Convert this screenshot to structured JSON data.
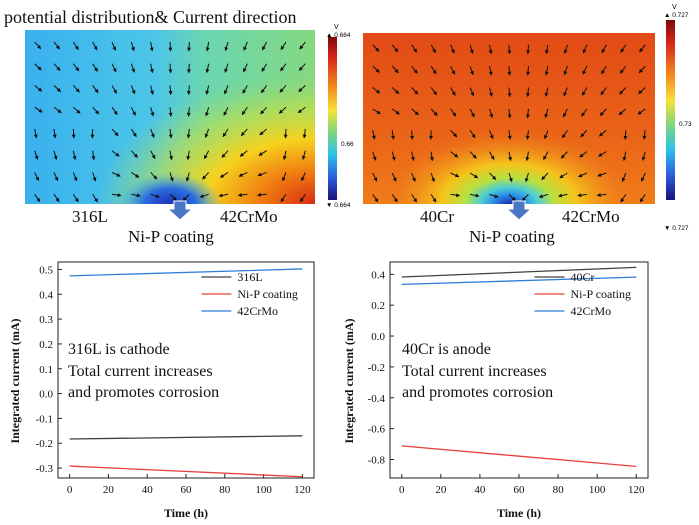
{
  "figure": {
    "title": "potential distribution& Current direction"
  },
  "maps": [
    {
      "id": "left",
      "palette": "blue-warm",
      "labels": {
        "left": "316L",
        "right": "42CrMo",
        "bottom": "Ni-P coating"
      },
      "colorbar": {
        "unit": "V",
        "max": "▲ 0.664",
        "mid": "0.66",
        "min": "▼ 0.664"
      }
    },
    {
      "id": "right",
      "palette": "red-warm",
      "labels": {
        "left": "40Cr",
        "right": "42CrMo",
        "bottom": "Ni-P coating"
      },
      "colorbar": {
        "unit": "V",
        "max": "▲ 0.727",
        "mid": "0.73",
        "min": "▼ 0.727"
      }
    }
  ],
  "chart_data": [
    {
      "type": "line",
      "xlabel": "Time (h)",
      "ylabel": "Integrated current (mA)",
      "xlim": [
        -6,
        126
      ],
      "ylim": [
        -0.34,
        0.53
      ],
      "xticks": [
        0,
        20,
        40,
        60,
        80,
        100,
        120
      ],
      "yticks": [
        -0.3,
        -0.2,
        -0.1,
        0.0,
        0.1,
        0.2,
        0.3,
        0.4,
        0.5
      ],
      "ytick_labels": [
        "-0.3",
        "-0.2",
        "-0.1",
        "0.0",
        "0.1",
        "0.2",
        "0.3",
        "0.4",
        "0.5"
      ],
      "legend_position": "upper-right",
      "annotation": [
        "316L is cathode",
        "Total current increases",
        "and promotes corrosion"
      ],
      "series": [
        {
          "name": "316L",
          "color": "#404040",
          "x": [
            0,
            120
          ],
          "y": [
            -0.183,
            -0.17
          ]
        },
        {
          "name": "Ni-P coating",
          "color": "#e8413c",
          "x": [
            0,
            120
          ],
          "y": [
            -0.292,
            -0.335
          ]
        },
        {
          "name": "42CrMo",
          "color": "#2f7fd8",
          "x": [
            0,
            120
          ],
          "y": [
            0.474,
            0.502
          ]
        }
      ]
    },
    {
      "type": "line",
      "xlabel": "Time (h)",
      "ylabel": "Integrated current (mA)",
      "xlim": [
        -6,
        126
      ],
      "ylim": [
        -0.92,
        0.48
      ],
      "xticks": [
        0,
        20,
        40,
        60,
        80,
        100,
        120
      ],
      "yticks": [
        -0.8,
        -0.6,
        -0.4,
        -0.2,
        0.0,
        0.2,
        0.4
      ],
      "ytick_labels": [
        "-0.8",
        "-0.6",
        "-0.4",
        "-0.2",
        "0.0",
        "0.2",
        "0.4"
      ],
      "legend_position": "upper-right",
      "annotation": [
        "40Cr is anode",
        "Total current increases",
        "and promotes corrosion"
      ],
      "series": [
        {
          "name": "40Cr",
          "color": "#404040",
          "x": [
            0,
            120
          ],
          "y": [
            0.383,
            0.445
          ]
        },
        {
          "name": "Ni-P coating",
          "color": "#e8413c",
          "x": [
            0,
            120
          ],
          "y": [
            -0.712,
            -0.845
          ]
        },
        {
          "name": "42CrMo",
          "color": "#2f7fd8",
          "x": [
            0,
            120
          ],
          "y": [
            0.335,
            0.382
          ]
        }
      ]
    }
  ]
}
